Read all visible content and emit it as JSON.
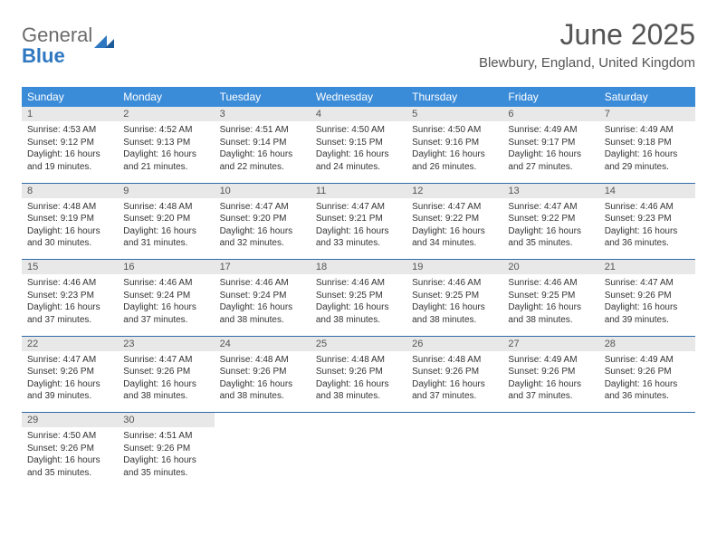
{
  "logo": {
    "general": "General",
    "blue": "Blue"
  },
  "title": "June 2025",
  "location": "Blewbury, England, United Kingdom",
  "colors": {
    "header_bg": "#3a8bd8",
    "header_text": "#ffffff",
    "day_num_bg": "#e8e8e8",
    "week_border": "#2f6aa8",
    "logo_blue": "#2f78c1",
    "body_text": "#333333"
  },
  "typography": {
    "title_fontsize": 32,
    "location_fontsize": 15,
    "dayhead_fontsize": 12,
    "daynum_fontsize": 11,
    "body_fontsize": 10
  },
  "day_headers": [
    "Sunday",
    "Monday",
    "Tuesday",
    "Wednesday",
    "Thursday",
    "Friday",
    "Saturday"
  ],
  "weeks": [
    [
      {
        "n": "1",
        "sr": "4:53 AM",
        "ss": "9:12 PM",
        "dl": "16 hours and 19 minutes."
      },
      {
        "n": "2",
        "sr": "4:52 AM",
        "ss": "9:13 PM",
        "dl": "16 hours and 21 minutes."
      },
      {
        "n": "3",
        "sr": "4:51 AM",
        "ss": "9:14 PM",
        "dl": "16 hours and 22 minutes."
      },
      {
        "n": "4",
        "sr": "4:50 AM",
        "ss": "9:15 PM",
        "dl": "16 hours and 24 minutes."
      },
      {
        "n": "5",
        "sr": "4:50 AM",
        "ss": "9:16 PM",
        "dl": "16 hours and 26 minutes."
      },
      {
        "n": "6",
        "sr": "4:49 AM",
        "ss": "9:17 PM",
        "dl": "16 hours and 27 minutes."
      },
      {
        "n": "7",
        "sr": "4:49 AM",
        "ss": "9:18 PM",
        "dl": "16 hours and 29 minutes."
      }
    ],
    [
      {
        "n": "8",
        "sr": "4:48 AM",
        "ss": "9:19 PM",
        "dl": "16 hours and 30 minutes."
      },
      {
        "n": "9",
        "sr": "4:48 AM",
        "ss": "9:20 PM",
        "dl": "16 hours and 31 minutes."
      },
      {
        "n": "10",
        "sr": "4:47 AM",
        "ss": "9:20 PM",
        "dl": "16 hours and 32 minutes."
      },
      {
        "n": "11",
        "sr": "4:47 AM",
        "ss": "9:21 PM",
        "dl": "16 hours and 33 minutes."
      },
      {
        "n": "12",
        "sr": "4:47 AM",
        "ss": "9:22 PM",
        "dl": "16 hours and 34 minutes."
      },
      {
        "n": "13",
        "sr": "4:47 AM",
        "ss": "9:22 PM",
        "dl": "16 hours and 35 minutes."
      },
      {
        "n": "14",
        "sr": "4:46 AM",
        "ss": "9:23 PM",
        "dl": "16 hours and 36 minutes."
      }
    ],
    [
      {
        "n": "15",
        "sr": "4:46 AM",
        "ss": "9:23 PM",
        "dl": "16 hours and 37 minutes."
      },
      {
        "n": "16",
        "sr": "4:46 AM",
        "ss": "9:24 PM",
        "dl": "16 hours and 37 minutes."
      },
      {
        "n": "17",
        "sr": "4:46 AM",
        "ss": "9:24 PM",
        "dl": "16 hours and 38 minutes."
      },
      {
        "n": "18",
        "sr": "4:46 AM",
        "ss": "9:25 PM",
        "dl": "16 hours and 38 minutes."
      },
      {
        "n": "19",
        "sr": "4:46 AM",
        "ss": "9:25 PM",
        "dl": "16 hours and 38 minutes."
      },
      {
        "n": "20",
        "sr": "4:46 AM",
        "ss": "9:25 PM",
        "dl": "16 hours and 38 minutes."
      },
      {
        "n": "21",
        "sr": "4:47 AM",
        "ss": "9:26 PM",
        "dl": "16 hours and 39 minutes."
      }
    ],
    [
      {
        "n": "22",
        "sr": "4:47 AM",
        "ss": "9:26 PM",
        "dl": "16 hours and 39 minutes."
      },
      {
        "n": "23",
        "sr": "4:47 AM",
        "ss": "9:26 PM",
        "dl": "16 hours and 38 minutes."
      },
      {
        "n": "24",
        "sr": "4:48 AM",
        "ss": "9:26 PM",
        "dl": "16 hours and 38 minutes."
      },
      {
        "n": "25",
        "sr": "4:48 AM",
        "ss": "9:26 PM",
        "dl": "16 hours and 38 minutes."
      },
      {
        "n": "26",
        "sr": "4:48 AM",
        "ss": "9:26 PM",
        "dl": "16 hours and 37 minutes."
      },
      {
        "n": "27",
        "sr": "4:49 AM",
        "ss": "9:26 PM",
        "dl": "16 hours and 37 minutes."
      },
      {
        "n": "28",
        "sr": "4:49 AM",
        "ss": "9:26 PM",
        "dl": "16 hours and 36 minutes."
      }
    ],
    [
      {
        "n": "29",
        "sr": "4:50 AM",
        "ss": "9:26 PM",
        "dl": "16 hours and 35 minutes."
      },
      {
        "n": "30",
        "sr": "4:51 AM",
        "ss": "9:26 PM",
        "dl": "16 hours and 35 minutes."
      },
      null,
      null,
      null,
      null,
      null
    ]
  ],
  "labels": {
    "sunrise": "Sunrise: ",
    "sunset": "Sunset: ",
    "daylight": "Daylight: "
  }
}
